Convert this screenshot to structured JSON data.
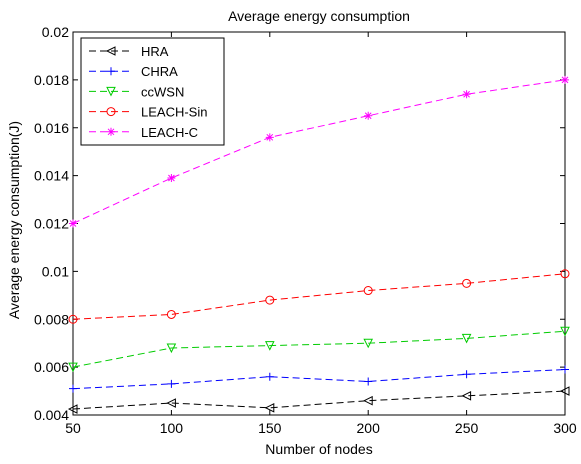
{
  "chart_data": {
    "type": "line",
    "title": "Average energy consumption",
    "xlabel": "Number of nodes",
    "ylabel": "Average energy consumption(J)",
    "x": [
      50,
      100,
      150,
      200,
      250,
      300
    ],
    "xlim": [
      50,
      300
    ],
    "ylim": [
      0.004,
      0.02
    ],
    "xticks": [
      "50",
      "100",
      "150",
      "200",
      "250",
      "300"
    ],
    "yticks": [
      "0.004",
      "0.006",
      "0.008",
      "0.01",
      "0.012",
      "0.014",
      "0.016",
      "0.018",
      "0.02"
    ],
    "grid": false,
    "legend_position": "top-left",
    "series": [
      {
        "name": "HRA",
        "color": "#000000",
        "marker": "triangle-left",
        "dash": "dashed",
        "values": [
          0.00425,
          0.0045,
          0.0043,
          0.0046,
          0.0048,
          0.005
        ]
      },
      {
        "name": "CHRA",
        "color": "#0000ff",
        "marker": "plus",
        "dash": "dashed",
        "values": [
          0.0051,
          0.0053,
          0.0056,
          0.0054,
          0.0057,
          0.0059
        ]
      },
      {
        "name": "ccWSN",
        "color": "#00cc00",
        "marker": "triangle-down",
        "dash": "dashed",
        "values": [
          0.006,
          0.0068,
          0.0069,
          0.007,
          0.0072,
          0.0075
        ]
      },
      {
        "name": "LEACH-Sin",
        "color": "#ff0000",
        "marker": "circle",
        "dash": "dashed",
        "values": [
          0.008,
          0.0082,
          0.0088,
          0.0092,
          0.0095,
          0.0099
        ]
      },
      {
        "name": "LEACH-C",
        "color": "#ff00ff",
        "marker": "star",
        "dash": "dashed",
        "values": [
          0.012,
          0.0139,
          0.0156,
          0.0165,
          0.0174,
          0.018
        ]
      }
    ]
  }
}
